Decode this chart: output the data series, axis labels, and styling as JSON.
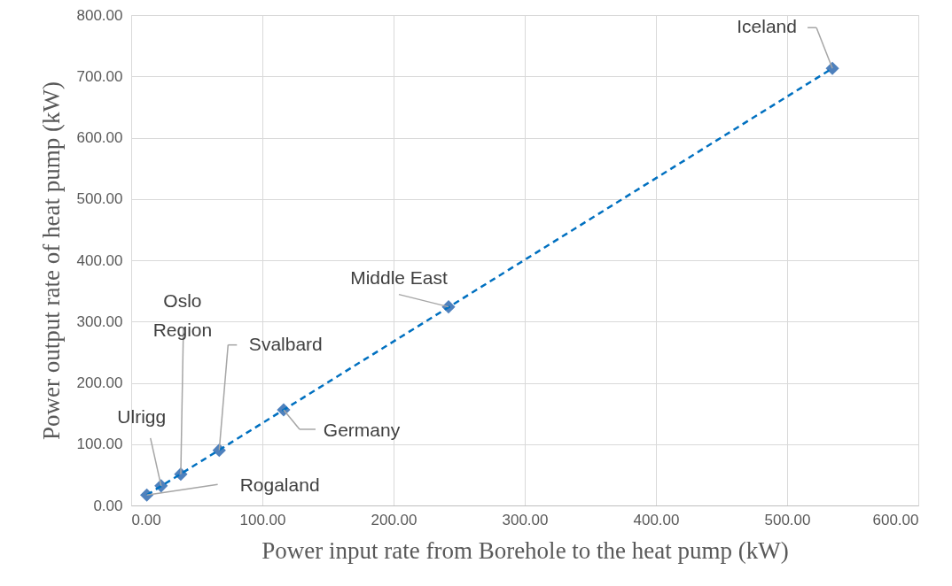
{
  "chart_data": {
    "type": "scatter",
    "xlabel": "Power input rate from Borehole to the heat pump (kW)",
    "ylabel": "Power output rate of heat pump (kW)",
    "series": [
      {
        "color": "#4f81bd",
        "marker": "diamond",
        "x": [
          11.9,
          22.8,
          37.8,
          67.1,
          116.2,
          241.9,
          534.5
        ],
        "values": [
          17,
          32,
          51,
          90,
          156,
          324,
          713
        ]
      },
      {
        "type": "line",
        "color": "#0070c0",
        "line_style": "dashed",
        "marker": "none",
        "x": [
          11.9,
          534.5
        ],
        "values": [
          17,
          713
        ]
      }
    ],
    "annotations": [
      {
        "text": "Rogaland",
        "x": 11.9,
        "y": 17
      },
      {
        "text": "Ulrigg",
        "x": 22.8,
        "y": 32
      },
      {
        "text": "Oslo Region",
        "x": 37.8,
        "y": 51
      },
      {
        "text": "Svalbard",
        "x": 67.1,
        "y": 90
      },
      {
        "text": "Germany",
        "x": 116.2,
        "y": 156
      },
      {
        "text": "Middle East",
        "x": 241.9,
        "y": 324
      },
      {
        "text": "Iceland",
        "x": 534.5,
        "y": 713
      }
    ],
    "xlim": [
      0,
      600
    ],
    "xticks": [
      {
        "value": 0,
        "label": "0.00"
      },
      {
        "value": 100,
        "label": "100.00"
      },
      {
        "value": 200,
        "label": "200.00"
      },
      {
        "value": 300,
        "label": "300.00"
      },
      {
        "value": 400,
        "label": "400.00"
      },
      {
        "value": 500,
        "label": "500.00"
      },
      {
        "value": 600,
        "label": "600.00"
      }
    ],
    "ylim": [
      0,
      800
    ],
    "yticks": [
      {
        "value": 0,
        "label": "0.00"
      },
      {
        "value": 100,
        "label": "100.00"
      },
      {
        "value": 200,
        "label": "200.00"
      },
      {
        "value": 300,
        "label": "300.00"
      },
      {
        "value": 400,
        "label": "400.00"
      },
      {
        "value": 500,
        "label": "500.00"
      },
      {
        "value": 600,
        "label": "600.00"
      },
      {
        "value": 700,
        "label": "700.00"
      },
      {
        "value": 800,
        "label": "800.00"
      }
    ],
    "grid": true
  }
}
